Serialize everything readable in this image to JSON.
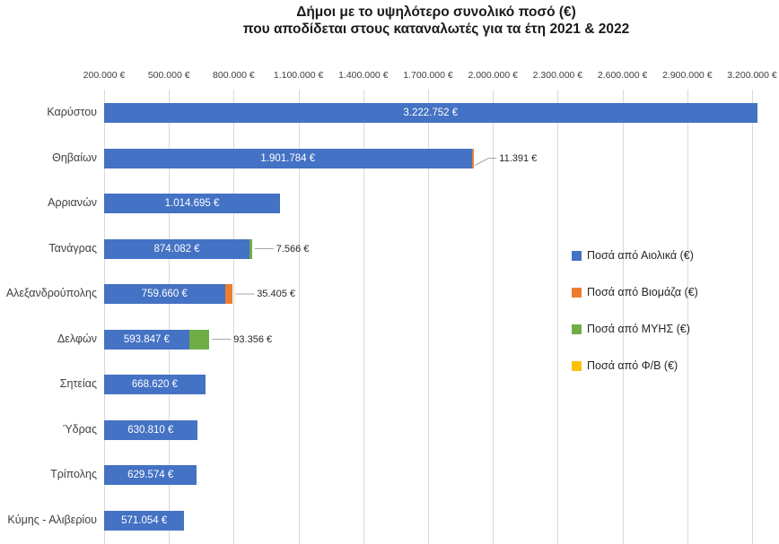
{
  "chart_data": {
    "type": "bar",
    "orientation": "horizontal",
    "stacked": true,
    "title_line1": "Δήμοι με το υψηλότερο συνολικό ποσό (€)",
    "title_line2": "που αποδίδεται στους καταναλωτές για τα έτη 2021 & 2022",
    "x_axis": {
      "min": 200000,
      "max": 3300000,
      "gridlines": true,
      "tick_values": [
        200000,
        500000,
        800000,
        1100000,
        1400000,
        1700000,
        2000000,
        2300000,
        2600000,
        2900000,
        3200000
      ],
      "tick_labels": [
        "200.000 €",
        "500.000 €",
        "800.000 €",
        "1.100.000 €",
        "1.400.000 €",
        "1.700.000 €",
        "2.000.000 €",
        "2.300.000 €",
        "2.600.000 €",
        "2.900.000 €",
        "3.200.000 €"
      ]
    },
    "series": [
      {
        "key": "aiolika",
        "name": "Ποσά από Αιολικά (€)",
        "color": "#4472C4"
      },
      {
        "key": "viomaza",
        "name": "Ποσά από Βιομάζα (€)",
        "color": "#ED7D31"
      },
      {
        "key": "myis",
        "name": "Ποσά από ΜΥΗΣ (€)",
        "color": "#70AD47"
      },
      {
        "key": "fv",
        "name": "Ποσά από Φ/Β (€)",
        "color": "#FFC000"
      }
    ],
    "rows": [
      {
        "category": "Καρύστου",
        "segments": [
          {
            "series": "aiolika",
            "value": 3222752,
            "label": "3.222.752 €",
            "label_style": "inside"
          }
        ]
      },
      {
        "category": "Θηβαίων",
        "segments": [
          {
            "series": "aiolika",
            "value": 1901784,
            "label": "1.901.784 €",
            "label_style": "inside"
          },
          {
            "series": "viomaza",
            "value": 11391,
            "label": "11.391 €",
            "label_style": "callout-bent"
          }
        ]
      },
      {
        "category": "Αρριανών",
        "segments": [
          {
            "series": "aiolika",
            "value": 1014695,
            "label": "1.014.695 €",
            "label_style": "inside"
          }
        ]
      },
      {
        "category": "Τανάγρας",
        "segments": [
          {
            "series": "aiolika",
            "value": 874082,
            "label": "874.082 €",
            "label_style": "inside"
          },
          {
            "series": "myis",
            "value": 7566,
            "label": "7.566 €",
            "label_style": "callout"
          }
        ]
      },
      {
        "category": "Αλεξανδρούπολης",
        "segments": [
          {
            "series": "aiolika",
            "value": 759660,
            "label": "759.660 €",
            "label_style": "inside"
          },
          {
            "series": "viomaza",
            "value": 35405,
            "label": "35.405 €",
            "label_style": "callout"
          }
        ]
      },
      {
        "category": "Δελφών",
        "segments": [
          {
            "series": "aiolika",
            "value": 593847,
            "label": "593.847 €",
            "label_style": "inside"
          },
          {
            "series": "myis",
            "value": 93356,
            "label": "93.356 €",
            "label_style": "callout"
          }
        ]
      },
      {
        "category": "Σητείας",
        "segments": [
          {
            "series": "aiolika",
            "value": 668620,
            "label": "668.620 €",
            "label_style": "inside"
          }
        ]
      },
      {
        "category": "Ύδρας",
        "segments": [
          {
            "series": "aiolika",
            "value": 630810,
            "label": "630.810 €",
            "label_style": "inside"
          }
        ]
      },
      {
        "category": "Τρίπολης",
        "segments": [
          {
            "series": "aiolika",
            "value": 629574,
            "label": "629.574 €",
            "label_style": "inside"
          }
        ]
      },
      {
        "category": "Κύμης - Αλιβερίου",
        "segments": [
          {
            "series": "aiolika",
            "value": 571054,
            "label": "571.054 €",
            "label_style": "inside"
          }
        ]
      }
    ],
    "legend": {
      "position": "right",
      "items": [
        {
          "label": "Ποσά από Αιολικά (€)",
          "color": "#4472C4"
        },
        {
          "label": "Ποσά από Βιομάζα (€)",
          "color": "#ED7D31"
        },
        {
          "label": "Ποσά από ΜΥΗΣ (€)",
          "color": "#70AD47"
        },
        {
          "label": "Ποσά από Φ/Β (€)",
          "color": "#FFC000"
        }
      ]
    },
    "colors": {
      "gridline": "#D9D9D9",
      "leader_line": "#A6A6A6",
      "title_text": "#1A1A1A",
      "axis_text": "#404040",
      "inside_label_text": "#FFFFFF",
      "outside_label_text": "#262626"
    }
  }
}
